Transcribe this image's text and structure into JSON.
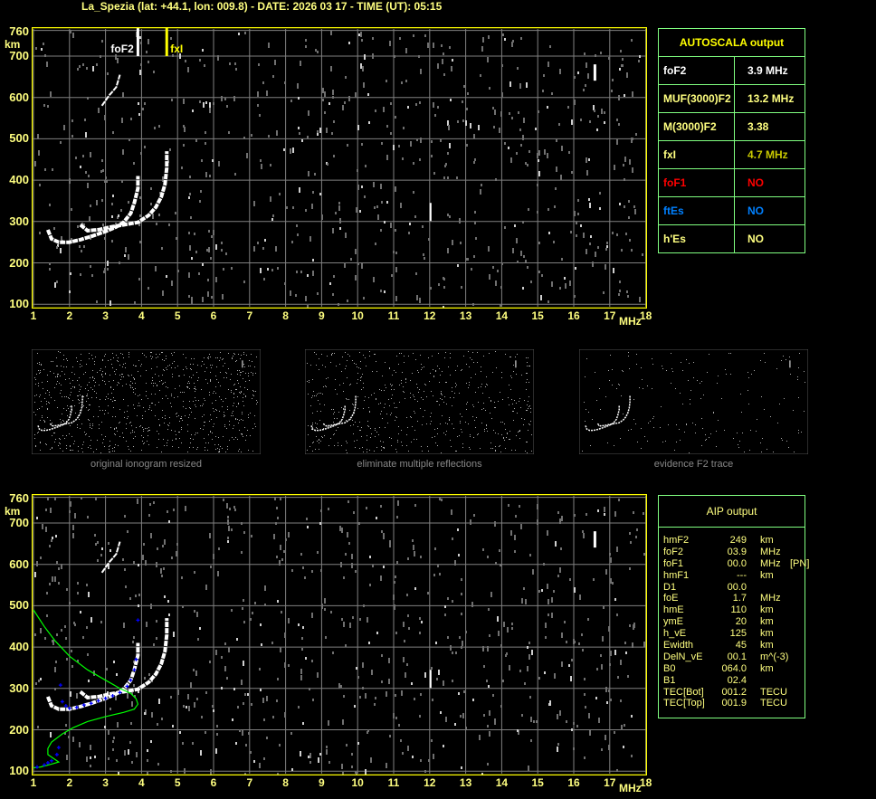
{
  "header": {
    "title": "La_Spezia (lat: +44.1, lon: 009.8) - DATE: 2026 03 17 - TIME (UT): 05:15"
  },
  "axes": {
    "y_ticks": [
      "760",
      "700",
      "600",
      "500",
      "400",
      "300",
      "200",
      "100"
    ],
    "y_unit": "km",
    "x_ticks": [
      "1",
      "2",
      "3",
      "4",
      "5",
      "6",
      "7",
      "8",
      "9",
      "10",
      "11",
      "12",
      "13",
      "14",
      "15",
      "16",
      "17",
      "18"
    ],
    "x_unit": "MHz"
  },
  "markers": {
    "fof2_label": "foF2",
    "fxi_label": "fxI"
  },
  "thumbnails": [
    {
      "caption": "original ionogram resized"
    },
    {
      "caption": "eliminate multiple reflections"
    },
    {
      "caption": "evidence F2 trace"
    }
  ],
  "autoscala": {
    "title": "AUTOSCALA output",
    "rows": [
      {
        "label": "foF2",
        "value": "3.9 MHz",
        "color": "#ffffff"
      },
      {
        "label": "MUF(3000)F2",
        "value": "13.2 MHz",
        "color": "#ffff80"
      },
      {
        "label": "M(3000)F2",
        "value": "3.38",
        "color": "#ffff80"
      },
      {
        "label": "fxI",
        "value": "4.7 MHz",
        "color": "#ffff80",
        "value_color": "#c8c800"
      },
      {
        "label": "foF1",
        "value": "NO",
        "color": "#ff0000"
      },
      {
        "label": "ftEs",
        "value": "NO",
        "color": "#0080ff"
      },
      {
        "label": "h'Es",
        "value": "NO",
        "color": "#ffff80"
      }
    ]
  },
  "aip": {
    "title": "AIP output",
    "rows": [
      {
        "k": "hmF2",
        "v": "249",
        "u": "km",
        "x": ""
      },
      {
        "k": "foF2",
        "v": "03.9",
        "u": "MHz",
        "x": ""
      },
      {
        "k": "foF1",
        "v": "00.0",
        "u": "MHz",
        "x": "[PN]"
      },
      {
        "k": "hmF1",
        "v": "---",
        "u": "km",
        "x": ""
      },
      {
        "k": "D1",
        "v": "00.0",
        "u": "",
        "x": ""
      },
      {
        "k": "foE",
        "v": "1.7",
        "u": "MHz",
        "x": ""
      },
      {
        "k": "hmE",
        "v": "110",
        "u": "km",
        "x": ""
      },
      {
        "k": "ymE",
        "v": "20",
        "u": "km",
        "x": ""
      },
      {
        "k": "h_vE",
        "v": "125",
        "u": "km",
        "x": ""
      },
      {
        "k": "Ewidth",
        "v": "45",
        "u": "km",
        "x": ""
      },
      {
        "k": "DelN_vE",
        "v": "00.1",
        "u": "m^(-3)",
        "x": ""
      },
      {
        "k": "B0",
        "v": "064.0",
        "u": "km",
        "x": ""
      },
      {
        "k": "B1",
        "v": "02.4",
        "u": "",
        "x": ""
      },
      {
        "k": "TEC[Bot]",
        "v": "001.2",
        "u": "TECU",
        "x": ""
      },
      {
        "k": "TEC[Top]",
        "v": "001.9",
        "u": "TECU",
        "x": ""
      }
    ]
  },
  "colors": {
    "frame": "#ffff00",
    "grid": "#808080",
    "table_border": "#80ff80",
    "profile": "#00ff00",
    "scaled_points": "#0000ff",
    "trace": "#ffffff"
  },
  "chart_data": {
    "type": "scatter",
    "xlabel": "MHz",
    "ylabel": "km",
    "xlim": [
      1,
      18
    ],
    "ylim": [
      100,
      760
    ],
    "grid": true,
    "fof2": 3.9,
    "fxi": 4.7,
    "o_trace": [
      [
        1.4,
        280
      ],
      [
        1.5,
        258
      ],
      [
        1.7,
        250
      ],
      [
        2.0,
        250
      ],
      [
        2.3,
        256
      ],
      [
        2.6,
        264
      ],
      [
        3.0,
        276
      ],
      [
        3.3,
        287
      ],
      [
        3.5,
        298
      ],
      [
        3.7,
        320
      ],
      [
        3.8,
        345
      ],
      [
        3.9,
        380
      ],
      [
        3.9,
        410
      ]
    ],
    "x_trace": [
      [
        2.3,
        292
      ],
      [
        2.5,
        278
      ],
      [
        2.8,
        280
      ],
      [
        3.1,
        286
      ],
      [
        3.5,
        292
      ],
      [
        3.9,
        298
      ],
      [
        4.2,
        315
      ],
      [
        4.4,
        335
      ],
      [
        4.55,
        360
      ],
      [
        4.65,
        390
      ],
      [
        4.7,
        430
      ],
      [
        4.7,
        470
      ]
    ],
    "second_hop": [
      [
        2.9,
        580
      ],
      [
        3.1,
        605
      ],
      [
        3.3,
        625
      ],
      [
        3.4,
        655
      ]
    ],
    "profile": [
      [
        1.0,
        490
      ],
      [
        1.3,
        450
      ],
      [
        1.6,
        415
      ],
      [
        2.0,
        378
      ],
      [
        2.5,
        345
      ],
      [
        3.0,
        320
      ],
      [
        3.4,
        300
      ],
      [
        3.7,
        288
      ],
      [
        3.85,
        275
      ],
      [
        3.9,
        262
      ],
      [
        3.8,
        250
      ],
      [
        3.5,
        242
      ],
      [
        3.0,
        232
      ],
      [
        2.5,
        220
      ],
      [
        2.1,
        205
      ],
      [
        1.8,
        190
      ],
      [
        1.5,
        170
      ],
      [
        1.4,
        155
      ],
      [
        1.4,
        140
      ],
      [
        1.6,
        128
      ],
      [
        1.7,
        122
      ],
      [
        1.5,
        117
      ],
      [
        1.2,
        110
      ],
      [
        1.0,
        108
      ]
    ],
    "scaled_points": [
      [
        1.8,
        268
      ],
      [
        1.9,
        258
      ],
      [
        2.0,
        252
      ],
      [
        2.2,
        254
      ],
      [
        2.4,
        260
      ],
      [
        2.6,
        264
      ],
      [
        2.8,
        270
      ],
      [
        3.0,
        276
      ],
      [
        3.2,
        282
      ],
      [
        3.4,
        290
      ],
      [
        3.6,
        305
      ],
      [
        3.7,
        320
      ],
      [
        3.8,
        345
      ],
      [
        3.85,
        370
      ],
      [
        3.9,
        465
      ],
      [
        1.75,
        308
      ],
      [
        1.1,
        110
      ],
      [
        1.3,
        115
      ],
      [
        1.4,
        120
      ],
      [
        1.5,
        125
      ],
      [
        1.65,
        140
      ],
      [
        1.7,
        157
      ]
    ]
  }
}
